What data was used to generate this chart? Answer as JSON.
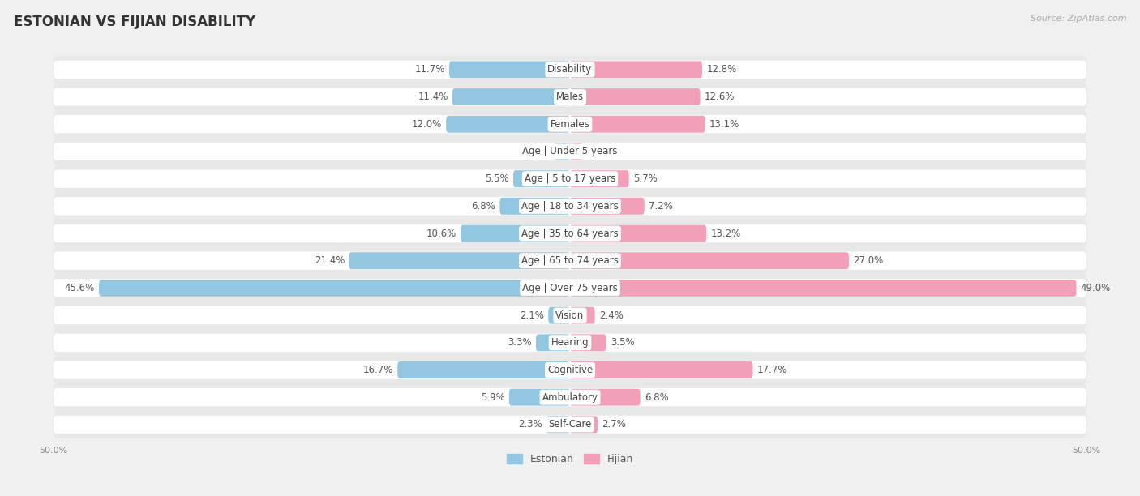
{
  "title": "ESTONIAN VS FIJIAN DISABILITY",
  "source": "Source: ZipAtlas.com",
  "categories": [
    "Disability",
    "Males",
    "Females",
    "Age | Under 5 years",
    "Age | 5 to 17 years",
    "Age | 18 to 34 years",
    "Age | 35 to 64 years",
    "Age | 65 to 74 years",
    "Age | Over 75 years",
    "Vision",
    "Hearing",
    "Cognitive",
    "Ambulatory",
    "Self-Care"
  ],
  "estonian": [
    11.7,
    11.4,
    12.0,
    1.5,
    5.5,
    6.8,
    10.6,
    21.4,
    45.6,
    2.1,
    3.3,
    16.7,
    5.9,
    2.3
  ],
  "fijian": [
    12.8,
    12.6,
    13.1,
    1.2,
    5.7,
    7.2,
    13.2,
    27.0,
    49.0,
    2.4,
    3.5,
    17.7,
    6.8,
    2.7
  ],
  "max_val": 50.0,
  "estonian_color": "#93C6E0",
  "fijian_color": "#F2A0B8",
  "estonian_label": "Estonian",
  "fijian_label": "Fijian",
  "bg_color": "#f0f0f0",
  "row_bg_color": "#e8e8e8",
  "bar_bg_color": "#ffffff",
  "title_fontsize": 12,
  "cat_fontsize": 8.5,
  "val_fontsize": 8.5,
  "tick_fontsize": 8,
  "source_fontsize": 8,
  "legend_fontsize": 9
}
